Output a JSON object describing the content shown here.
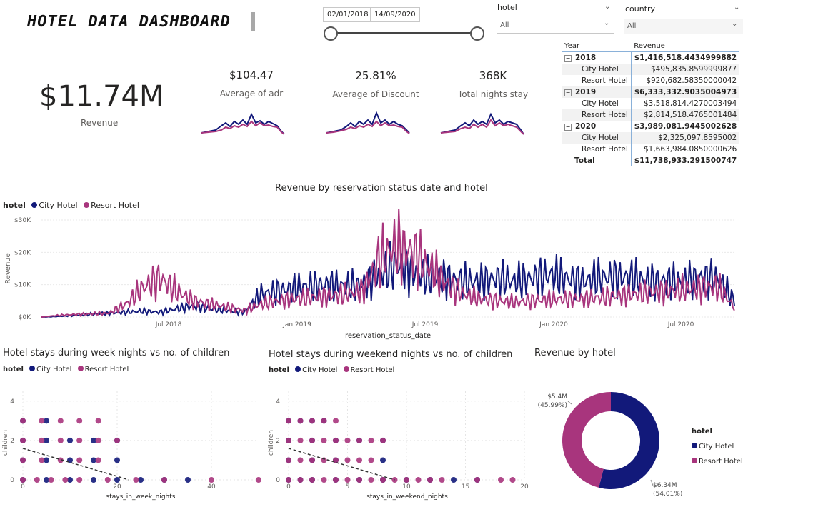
{
  "header": {
    "title": "HOTEL DATA DASHBOARD"
  },
  "date_range": {
    "start": "02/01/2018",
    "end": "14/09/2020"
  },
  "slicers": [
    {
      "label": "hotel",
      "value": "All"
    },
    {
      "label": "country",
      "value": "All"
    }
  ],
  "kpis": {
    "revenue": {
      "value": "$11.74M",
      "label": "Revenue"
    },
    "adr": {
      "value": "$104.47",
      "label": "Average of adr"
    },
    "discount": {
      "value": "25.81%",
      "label": "Average of Discount"
    },
    "nights": {
      "value": "368K",
      "label": "Total nights stay"
    }
  },
  "matrix": {
    "headers": [
      "Year",
      "Revenue"
    ],
    "years": [
      {
        "year": "2018",
        "total": "$1,416,518.4434999882",
        "rows": [
          {
            "hotel": "City Hotel",
            "value": "$495,835.8599999877"
          },
          {
            "hotel": "Resort Hotel",
            "value": "$920,682.58350000042"
          }
        ]
      },
      {
        "year": "2019",
        "total": "$6,333,332.9035004973",
        "rows": [
          {
            "hotel": "City Hotel",
            "value": "$3,518,814.4270003494"
          },
          {
            "hotel": "Resort Hotel",
            "value": "$2,814,518.4765001484"
          }
        ]
      },
      {
        "year": "2020",
        "total": "$3,989,081.9445002628",
        "rows": [
          {
            "hotel": "City Hotel",
            "value": "$2,325,097.8595002"
          },
          {
            "hotel": "Resort Hotel",
            "value": "$1,663,984.0850000626"
          }
        ]
      }
    ],
    "total_label": "Total",
    "grand_total": "$11,738,933.291500747"
  },
  "colors": {
    "city": "#12197a",
    "resort": "#a8357d"
  },
  "legend": {
    "title": "hotel",
    "city": "City Hotel",
    "resort": "Resort Hotel"
  },
  "chart_data": [
    {
      "type": "line",
      "title": "Revenue by reservation status date and hotel",
      "xlabel": "reservation_status_date",
      "ylabel": "Revenue",
      "y_ticks": [
        "$0K",
        "$10K",
        "$20K",
        "$30K"
      ],
      "x_ticks": [
        "Jul 2018",
        "Jan 2019",
        "Jul 2019",
        "Jan 2020",
        "Jul 2020"
      ],
      "ylim": [
        0,
        30000
      ],
      "series": [
        {
          "name": "City Hotel",
          "values": [
            0,
            200,
            500,
            900,
            1200,
            1500,
            1800,
            1500,
            2500,
            3500,
            2500,
            2000,
            1500,
            7000,
            8000,
            9000,
            9500,
            10000,
            9500,
            10000,
            13000,
            16000,
            14000,
            12000,
            12000,
            11000,
            11000,
            12000,
            11000,
            12000,
            13000,
            12000,
            11000,
            12000,
            12500,
            12000,
            11000,
            11000,
            11000,
            12000,
            12000,
            5000
          ]
        },
        {
          "name": "Resort Hotel",
          "values": [
            0,
            500,
            800,
            1000,
            1200,
            4000,
            9000,
            12000,
            8000,
            5000,
            4000,
            3000,
            2000,
            4000,
            5000,
            5500,
            6000,
            6500,
            7000,
            8000,
            18000,
            22000,
            20000,
            15000,
            10000,
            7000,
            5500,
            5000,
            4500,
            5000,
            5500,
            5500,
            5500,
            6000,
            6500,
            7000,
            7500,
            8000,
            8500,
            9000,
            9500,
            3000
          ]
        }
      ]
    },
    {
      "type": "scatter",
      "title": "Hotel stays during week nights vs no. of children",
      "xlabel": "stays_in_week_nights",
      "ylabel": "children",
      "x_ticks": [
        "0",
        "20",
        "40"
      ],
      "y_ticks": [
        "0",
        "2",
        "4"
      ],
      "xlim": [
        0,
        50
      ],
      "ylim": [
        0,
        4.5
      ],
      "series": [
        {
          "name": "City Hotel",
          "points": [
            [
              0,
              0
            ],
            [
              5,
              0
            ],
            [
              10,
              0
            ],
            [
              15,
              0
            ],
            [
              20,
              0
            ],
            [
              25,
              0
            ],
            [
              30,
              0
            ],
            [
              35,
              0
            ],
            [
              0,
              1
            ],
            [
              5,
              1
            ],
            [
              10,
              1
            ],
            [
              15,
              1
            ],
            [
              20,
              1
            ],
            [
              0,
              2
            ],
            [
              5,
              2
            ],
            [
              10,
              2
            ],
            [
              15,
              2
            ],
            [
              20,
              2
            ],
            [
              0,
              3
            ],
            [
              5,
              3
            ]
          ]
        },
        {
          "name": "Resort Hotel",
          "points": [
            [
              0,
              0
            ],
            [
              3,
              0
            ],
            [
              6,
              0
            ],
            [
              9,
              0
            ],
            [
              12,
              0
            ],
            [
              18,
              0
            ],
            [
              24,
              0
            ],
            [
              30,
              0
            ],
            [
              40,
              0
            ],
            [
              50,
              0
            ],
            [
              0,
              1
            ],
            [
              4,
              1
            ],
            [
              8,
              1
            ],
            [
              12,
              1
            ],
            [
              16,
              1
            ],
            [
              0,
              2
            ],
            [
              4,
              2
            ],
            [
              8,
              2
            ],
            [
              12,
              2
            ],
            [
              16,
              2
            ],
            [
              20,
              2
            ],
            [
              0,
              3
            ],
            [
              4,
              3
            ],
            [
              8,
              3
            ],
            [
              12,
              3
            ],
            [
              16,
              3
            ]
          ]
        }
      ]
    },
    {
      "type": "scatter",
      "title": "Hotel stays during weekend nights vs no. of children",
      "xlabel": "stays_in_weekend_nights",
      "ylabel": "children",
      "x_ticks": [
        "0",
        "5",
        "10",
        "15",
        "20"
      ],
      "y_ticks": [
        "0",
        "2",
        "4"
      ],
      "xlim": [
        0,
        20
      ],
      "ylim": [
        0,
        4.5
      ],
      "series": [
        {
          "name": "City Hotel",
          "points": [
            [
              0,
              0
            ],
            [
              1,
              0
            ],
            [
              2,
              0
            ],
            [
              4,
              0
            ],
            [
              6,
              0
            ],
            [
              8,
              0
            ],
            [
              10,
              0
            ],
            [
              12,
              0
            ],
            [
              14,
              0
            ],
            [
              16,
              0
            ],
            [
              0,
              1
            ],
            [
              2,
              1
            ],
            [
              4,
              1
            ],
            [
              8,
              1
            ],
            [
              0,
              2
            ],
            [
              2,
              2
            ],
            [
              4,
              2
            ],
            [
              6,
              2
            ],
            [
              8,
              2
            ],
            [
              0,
              3
            ],
            [
              1,
              3
            ],
            [
              2,
              3
            ],
            [
              3,
              3
            ]
          ]
        },
        {
          "name": "Resort Hotel",
          "points": [
            [
              0,
              0
            ],
            [
              1,
              0
            ],
            [
              2,
              0
            ],
            [
              3,
              0
            ],
            [
              4,
              0
            ],
            [
              5,
              0
            ],
            [
              6,
              0
            ],
            [
              7,
              0
            ],
            [
              8,
              0
            ],
            [
              9,
              0
            ],
            [
              10,
              0
            ],
            [
              11,
              0
            ],
            [
              12,
              0
            ],
            [
              13,
              0
            ],
            [
              16,
              0
            ],
            [
              18,
              0
            ],
            [
              19,
              0
            ],
            [
              0,
              1
            ],
            [
              1,
              1
            ],
            [
              2,
              1
            ],
            [
              3,
              1
            ],
            [
              4,
              1
            ],
            [
              5,
              1
            ],
            [
              6,
              1
            ],
            [
              7,
              1
            ],
            [
              0,
              2
            ],
            [
              1,
              2
            ],
            [
              2,
              2
            ],
            [
              3,
              2
            ],
            [
              4,
              2
            ],
            [
              5,
              2
            ],
            [
              6,
              2
            ],
            [
              7,
              2
            ],
            [
              8,
              2
            ],
            [
              0,
              3
            ],
            [
              1,
              3
            ],
            [
              2,
              3
            ],
            [
              3,
              3
            ],
            [
              4,
              3
            ]
          ]
        }
      ]
    },
    {
      "type": "pie",
      "title": "Revenue by hotel",
      "categories": [
        "City Hotel",
        "Resort Hotel"
      ],
      "values": [
        6.34,
        5.4
      ],
      "labels": [
        {
          "value": "$6.34M",
          "pct": "(54.01%)"
        },
        {
          "value": "$5.4M",
          "pct": "(45.99%)"
        }
      ]
    }
  ]
}
